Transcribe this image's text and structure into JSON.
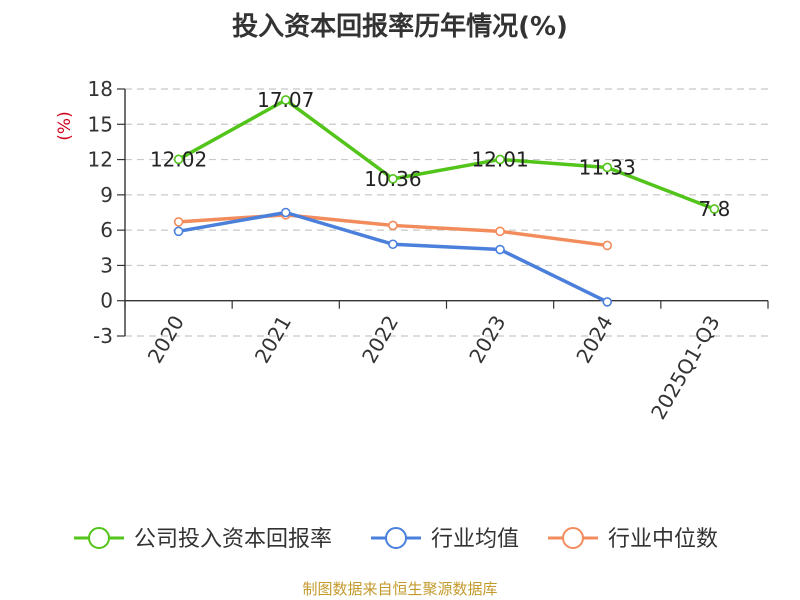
{
  "title": "投入资本回报率历年情况(%)",
  "source_text": "制图数据来自恒生聚源数据库",
  "chart_data": {
    "type": "line",
    "title": "投入资本回报率历年情况(%)",
    "ylabel": "(%)",
    "xlabel": "",
    "categories": [
      "2020",
      "2021",
      "2022",
      "2023",
      "2024",
      "2025Q1-Q3"
    ],
    "ylim": [
      -3,
      18
    ],
    "yticks": [
      18,
      15,
      12,
      9,
      6,
      3,
      0,
      -3
    ],
    "grid": true,
    "legend_position": "bottom",
    "series": [
      {
        "name": "公司投入资本回报率",
        "color": "#52c41a",
        "values": [
          12.02,
          17.07,
          10.36,
          12.01,
          11.33,
          7.8
        ],
        "labels": [
          "12.02",
          "17.07",
          "10.36",
          "12.01",
          "11.33",
          "7.8"
        ]
      },
      {
        "name": "行业均值",
        "color": "#4a7fdb",
        "values": [
          5.9,
          7.5,
          4.8,
          4.35,
          -0.1,
          null
        ]
      },
      {
        "name": "行业中位数",
        "color": "#f28c5c",
        "values": [
          6.7,
          7.3,
          6.4,
          5.9,
          4.7,
          null
        ]
      }
    ]
  }
}
